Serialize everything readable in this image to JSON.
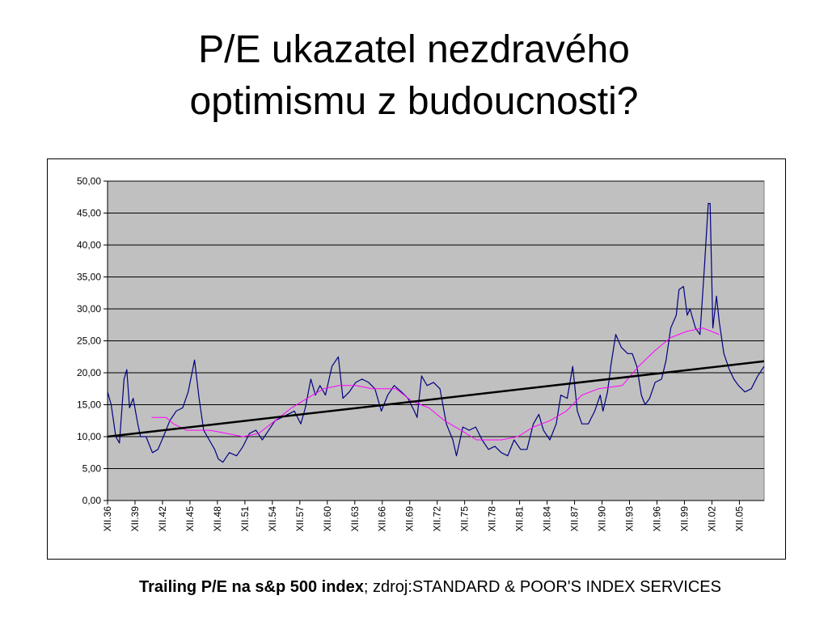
{
  "chart_data": {
    "type": "line",
    "title": [
      "P/E ukazatel nezdravého",
      "optimismu z budoucnosti?"
    ],
    "caption": {
      "bold": "Trailing P/E na s&p 500 index",
      "text": "; zdroj:STANDARD & POOR'S INDEX SERVICES"
    },
    "xlim": [
      1936.9,
      2008.6
    ],
    "xticks": [
      {
        "value": 1936.9,
        "label": "XII.36"
      },
      {
        "value": 1939.9,
        "label": "XII.39"
      },
      {
        "value": 1942.9,
        "label": "XII.42"
      },
      {
        "value": 1945.9,
        "label": "XII.45"
      },
      {
        "value": 1948.9,
        "label": "XII.48"
      },
      {
        "value": 1951.9,
        "label": "XII.51"
      },
      {
        "value": 1954.9,
        "label": "XII.54"
      },
      {
        "value": 1957.9,
        "label": "XII.57"
      },
      {
        "value": 1960.9,
        "label": "XII.60"
      },
      {
        "value": 1963.9,
        "label": "XII.63"
      },
      {
        "value": 1966.9,
        "label": "XII.66"
      },
      {
        "value": 1969.9,
        "label": "XII.69"
      },
      {
        "value": 1972.9,
        "label": "XII.72"
      },
      {
        "value": 1975.9,
        "label": "XII.75"
      },
      {
        "value": 1978.9,
        "label": "XII.78"
      },
      {
        "value": 1981.9,
        "label": "XII.81"
      },
      {
        "value": 1984.9,
        "label": "XII.84"
      },
      {
        "value": 1987.9,
        "label": "XII.87"
      },
      {
        "value": 1990.9,
        "label": "XII.90"
      },
      {
        "value": 1993.9,
        "label": "XII.93"
      },
      {
        "value": 1996.9,
        "label": "XII.96"
      },
      {
        "value": 1999.9,
        "label": "XII.99"
      },
      {
        "value": 2002.9,
        "label": "XII.02"
      },
      {
        "value": 2005.9,
        "label": "XII.05"
      }
    ],
    "ylim": [
      0,
      50
    ],
    "yticks": [
      {
        "value": 0,
        "label": "0,00"
      },
      {
        "value": 5,
        "label": "5,00"
      },
      {
        "value": 10,
        "label": "10,00"
      },
      {
        "value": 15,
        "label": "15,00"
      },
      {
        "value": 20,
        "label": "20,00"
      },
      {
        "value": 25,
        "label": "25,00"
      },
      {
        "value": 30,
        "label": "30,00"
      },
      {
        "value": 35,
        "label": "35,00"
      },
      {
        "value": 40,
        "label": "40,00"
      },
      {
        "value": 45,
        "label": "45,00"
      },
      {
        "value": 50,
        "label": "50,00"
      }
    ],
    "grid": true,
    "plot_background": "#c0c0c0",
    "series": [
      {
        "color": "#000080",
        "width": 1.2,
        "x": [
          1936.9,
          1937.3,
          1937.8,
          1938.2,
          1938.7,
          1939.0,
          1939.3,
          1939.7,
          1940.2,
          1940.5,
          1941.1,
          1941.8,
          1942.4,
          1943.0,
          1943.7,
          1944.4,
          1945.1,
          1945.7,
          1946.4,
          1946.9,
          1947.4,
          1948.0,
          1948.6,
          1949.0,
          1949.5,
          1950.2,
          1951.0,
          1951.7,
          1952.4,
          1953.1,
          1953.8,
          1954.5,
          1955.2,
          1955.9,
          1956.6,
          1957.3,
          1958.0,
          1958.5,
          1959.1,
          1959.6,
          1960.1,
          1960.7,
          1961.4,
          1962.1,
          1962.6,
          1963.3,
          1964.0,
          1964.7,
          1965.4,
          1966.1,
          1966.8,
          1967.5,
          1968.2,
          1969.0,
          1969.7,
          1970.4,
          1970.7,
          1971.2,
          1971.8,
          1972.5,
          1973.2,
          1973.9,
          1974.6,
          1975.0,
          1975.7,
          1976.4,
          1977.1,
          1977.8,
          1978.5,
          1979.2,
          1979.9,
          1980.6,
          1981.3,
          1982.0,
          1982.7,
          1983.4,
          1984.0,
          1984.5,
          1985.2,
          1985.9,
          1986.4,
          1987.1,
          1987.7,
          1988.2,
          1988.7,
          1989.4,
          1990.1,
          1990.7,
          1991.0,
          1991.5,
          1991.9,
          1992.4,
          1993.0,
          1993.7,
          1994.2,
          1994.7,
          1995.2,
          1995.6,
          1996.1,
          1996.7,
          1997.4,
          1997.9,
          1998.4,
          1999.0,
          1999.3,
          1999.8,
          2000.2,
          2000.5,
          2001.1,
          2001.6,
          2002.1,
          2002.5,
          2002.7,
          2003.0,
          2003.4,
          2003.7,
          2004.2,
          2004.8,
          2005.3,
          2005.8,
          2006.5,
          2007.2,
          2007.9,
          2008.6
        ],
        "values": [
          17,
          15,
          10,
          9,
          19,
          20.5,
          14.5,
          16,
          12,
          10,
          10,
          7.5,
          8,
          10,
          12.5,
          14,
          14.5,
          17,
          22,
          16,
          11,
          9.5,
          8,
          6.5,
          6,
          7.5,
          7,
          8.5,
          10.5,
          11,
          9.5,
          11,
          12.5,
          13,
          13.5,
          14,
          12,
          14.5,
          19,
          16.5,
          18,
          16.5,
          21,
          22.5,
          16,
          17,
          18.5,
          19,
          18.5,
          17.5,
          14,
          16.5,
          18,
          17,
          16,
          14,
          13,
          19.5,
          18,
          18.5,
          17.5,
          12,
          9.5,
          7,
          11.5,
          11,
          11.5,
          9.5,
          8,
          8.5,
          7.5,
          7,
          9.5,
          8,
          8,
          12,
          13.5,
          11,
          9.5,
          12,
          16.5,
          16,
          21,
          14,
          12,
          12,
          14,
          16.5,
          14,
          17,
          21.5,
          26,
          24,
          23,
          23,
          21,
          16.5,
          15,
          16,
          18.5,
          19,
          22,
          27,
          29,
          33,
          33.5,
          29,
          30,
          27,
          26,
          37,
          46.5,
          46.5,
          27,
          32,
          28,
          23,
          20.5,
          19,
          18,
          17,
          17.5,
          19.5,
          21
        ]
      },
      {
        "color": "#ff00ff",
        "width": 1,
        "x": [
          1941.7,
          1943.3,
          1944.1,
          1945.5,
          1948.1,
          1949.9,
          1951.7,
          1953.4,
          1955.2,
          1957.0,
          1958.7,
          1960.5,
          1962.2,
          1964.0,
          1965.8,
          1968.4,
          1970.2,
          1972.0,
          1973.7,
          1975.5,
          1977.2,
          1979.9,
          1981.7,
          1983.4,
          1985.2,
          1987.0,
          1988.7,
          1990.5,
          1993.1,
          1994.9,
          1996.7,
          1998.4,
          2000.2,
          2001.9,
          2002.8,
          2003.7
        ],
        "values": [
          13,
          13,
          12,
          11,
          11,
          10.5,
          10,
          10.5,
          12.5,
          14.5,
          16,
          17.5,
          18,
          18,
          17.5,
          17.5,
          15.5,
          14.5,
          12.5,
          11,
          9.5,
          9.5,
          10,
          11.5,
          12.5,
          14,
          16.5,
          17.5,
          18,
          21,
          23.5,
          25.5,
          26.5,
          27,
          26.5,
          26
        ]
      },
      {
        "color": "#000000",
        "width": 2.5,
        "x": [
          1936.9,
          2008.6
        ],
        "values": [
          10,
          21.8
        ]
      }
    ]
  }
}
